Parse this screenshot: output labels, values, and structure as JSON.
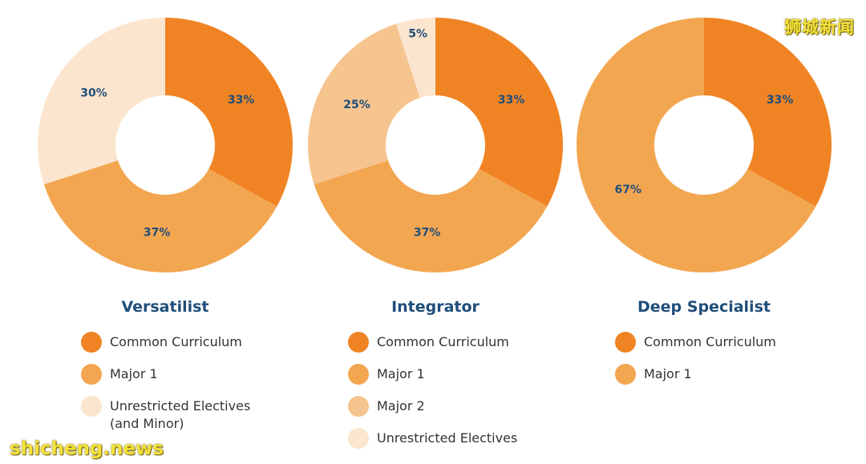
{
  "chart_data": [
    {
      "type": "pie",
      "title": "Versatilist",
      "series": [
        {
          "name": "Common Curriculum",
          "value": 33,
          "label": "33%",
          "color": "#f08425"
        },
        {
          "name": "Major 1",
          "value": 37,
          "label": "37%",
          "color": "#f3a650"
        },
        {
          "name": "Unrestricted Electives\n(and Minor)",
          "value": 30,
          "label": "30%",
          "color": "#fce5cf"
        }
      ]
    },
    {
      "type": "pie",
      "title": "Integrator",
      "series": [
        {
          "name": "Common Curriculum",
          "value": 33,
          "label": "33%",
          "color": "#f08425"
        },
        {
          "name": "Major 1",
          "value": 37,
          "label": "37%",
          "color": "#f3a650"
        },
        {
          "name": "Major 2",
          "value": 25,
          "label": "25%",
          "color": "#f6c48f"
        },
        {
          "name": "Unrestricted Electives",
          "value": 5,
          "label": "5%",
          "color": "#fce5cf"
        }
      ]
    },
    {
      "type": "pie",
      "title": "Deep Specialist",
      "series": [
        {
          "name": "Common Curriculum",
          "value": 33,
          "label": "33%",
          "color": "#f08425"
        },
        {
          "name": "Major 1",
          "value": 67,
          "label": "67%",
          "color": "#f3a650"
        }
      ]
    }
  ],
  "watermarks": {
    "top_right": "狮城新闻",
    "bottom_left": "shicheng.news"
  }
}
